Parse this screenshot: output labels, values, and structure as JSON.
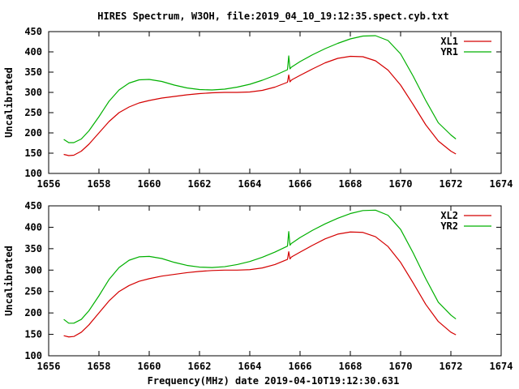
{
  "title": "HIRES Spectrum, W3OH, file:2019_04_10_19:12:35.spect.cyb.txt",
  "xlabel": "Frequency(MHz) date 2019-04-10T19:12:30.631",
  "colors": {
    "red": "#d40000",
    "green": "#00b000",
    "axis": "#000000"
  },
  "chart_data": [
    {
      "type": "line",
      "ylabel": "Uncalibrated",
      "xlim": [
        1656,
        1674
      ],
      "ylim": [
        100,
        450
      ],
      "xticks": [
        1656,
        1658,
        1660,
        1662,
        1664,
        1666,
        1668,
        1670,
        1672,
        1674
      ],
      "yticks": [
        100,
        150,
        200,
        250,
        300,
        350,
        400,
        450
      ],
      "legend_position": "top-right",
      "grid": false,
      "series": [
        {
          "name": "XL1",
          "color": "#d40000",
          "x": [
            1656.6,
            1656.8,
            1657.0,
            1657.3,
            1657.6,
            1658.0,
            1658.4,
            1658.8,
            1659.2,
            1659.6,
            1660.0,
            1660.5,
            1661.0,
            1661.5,
            1662.0,
            1662.5,
            1663.0,
            1663.5,
            1664.0,
            1664.5,
            1665.0,
            1665.5,
            1665.55,
            1665.6,
            1665.65,
            1665.7,
            1666.0,
            1666.5,
            1667.0,
            1667.5,
            1668.0,
            1668.5,
            1669.0,
            1669.5,
            1670.0,
            1670.5,
            1671.0,
            1671.5,
            1672.0,
            1672.2
          ],
          "y": [
            147,
            144,
            145,
            155,
            172,
            200,
            228,
            250,
            264,
            274,
            280,
            286,
            290,
            294,
            297,
            299,
            300,
            300,
            301,
            305,
            313,
            325,
            343,
            326,
            330,
            332,
            342,
            358,
            373,
            384,
            389,
            388,
            378,
            355,
            318,
            270,
            220,
            180,
            155,
            148
          ]
        },
        {
          "name": "YR1",
          "color": "#00b000",
          "x": [
            1656.6,
            1656.8,
            1657.0,
            1657.3,
            1657.6,
            1658.0,
            1658.4,
            1658.8,
            1659.2,
            1659.6,
            1660.0,
            1660.5,
            1661.0,
            1661.5,
            1662.0,
            1662.5,
            1663.0,
            1663.5,
            1664.0,
            1664.5,
            1665.0,
            1665.5,
            1665.55,
            1665.6,
            1665.65,
            1665.7,
            1666.0,
            1666.5,
            1667.0,
            1667.5,
            1668.0,
            1668.5,
            1669.0,
            1669.5,
            1670.0,
            1670.5,
            1671.0,
            1671.5,
            1672.0,
            1672.2
          ],
          "y": [
            184,
            176,
            176,
            185,
            205,
            240,
            278,
            306,
            323,
            331,
            332,
            327,
            318,
            311,
            307,
            306,
            308,
            313,
            320,
            330,
            342,
            356,
            390,
            358,
            362,
            364,
            376,
            393,
            408,
            421,
            432,
            439,
            440,
            428,
            395,
            340,
            280,
            225,
            195,
            185
          ]
        }
      ]
    },
    {
      "type": "line",
      "ylabel": "Uncalibrated",
      "xlim": [
        1656,
        1674
      ],
      "ylim": [
        100,
        450
      ],
      "xticks": [
        1656,
        1658,
        1660,
        1662,
        1664,
        1666,
        1668,
        1670,
        1672,
        1674
      ],
      "yticks": [
        100,
        150,
        200,
        250,
        300,
        350,
        400,
        450
      ],
      "legend_position": "top-right",
      "grid": false,
      "series": [
        {
          "name": "XL2",
          "color": "#d40000",
          "x": [
            1656.6,
            1656.8,
            1657.0,
            1657.3,
            1657.6,
            1658.0,
            1658.4,
            1658.8,
            1659.2,
            1659.6,
            1660.0,
            1660.5,
            1661.0,
            1661.5,
            1662.0,
            1662.5,
            1663.0,
            1663.5,
            1664.0,
            1664.5,
            1665.0,
            1665.5,
            1665.55,
            1665.6,
            1665.65,
            1665.7,
            1666.0,
            1666.5,
            1667.0,
            1667.5,
            1668.0,
            1668.5,
            1669.0,
            1669.5,
            1670.0,
            1670.5,
            1671.0,
            1671.5,
            1672.0,
            1672.2
          ],
          "y": [
            147,
            144,
            145,
            155,
            172,
            200,
            228,
            250,
            264,
            274,
            280,
            286,
            290,
            294,
            297,
            299,
            300,
            300,
            301,
            305,
            313,
            325,
            343,
            326,
            330,
            332,
            342,
            358,
            373,
            384,
            389,
            388,
            378,
            355,
            318,
            270,
            220,
            180,
            155,
            149
          ]
        },
        {
          "name": "YR2",
          "color": "#00b000",
          "x": [
            1656.6,
            1656.8,
            1657.0,
            1657.3,
            1657.6,
            1658.0,
            1658.4,
            1658.8,
            1659.2,
            1659.6,
            1660.0,
            1660.5,
            1661.0,
            1661.5,
            1662.0,
            1662.5,
            1663.0,
            1663.5,
            1664.0,
            1664.5,
            1665.0,
            1665.5,
            1665.55,
            1665.6,
            1665.65,
            1665.7,
            1666.0,
            1666.5,
            1667.0,
            1667.5,
            1668.0,
            1668.5,
            1669.0,
            1669.5,
            1670.0,
            1670.5,
            1671.0,
            1671.5,
            1672.0,
            1672.2
          ],
          "y": [
            185,
            176,
            176,
            185,
            205,
            240,
            278,
            306,
            323,
            331,
            332,
            327,
            318,
            311,
            307,
            306,
            308,
            313,
            320,
            330,
            342,
            356,
            390,
            358,
            362,
            364,
            376,
            393,
            408,
            421,
            432,
            439,
            440,
            428,
            395,
            340,
            280,
            225,
            195,
            186
          ]
        }
      ]
    }
  ]
}
